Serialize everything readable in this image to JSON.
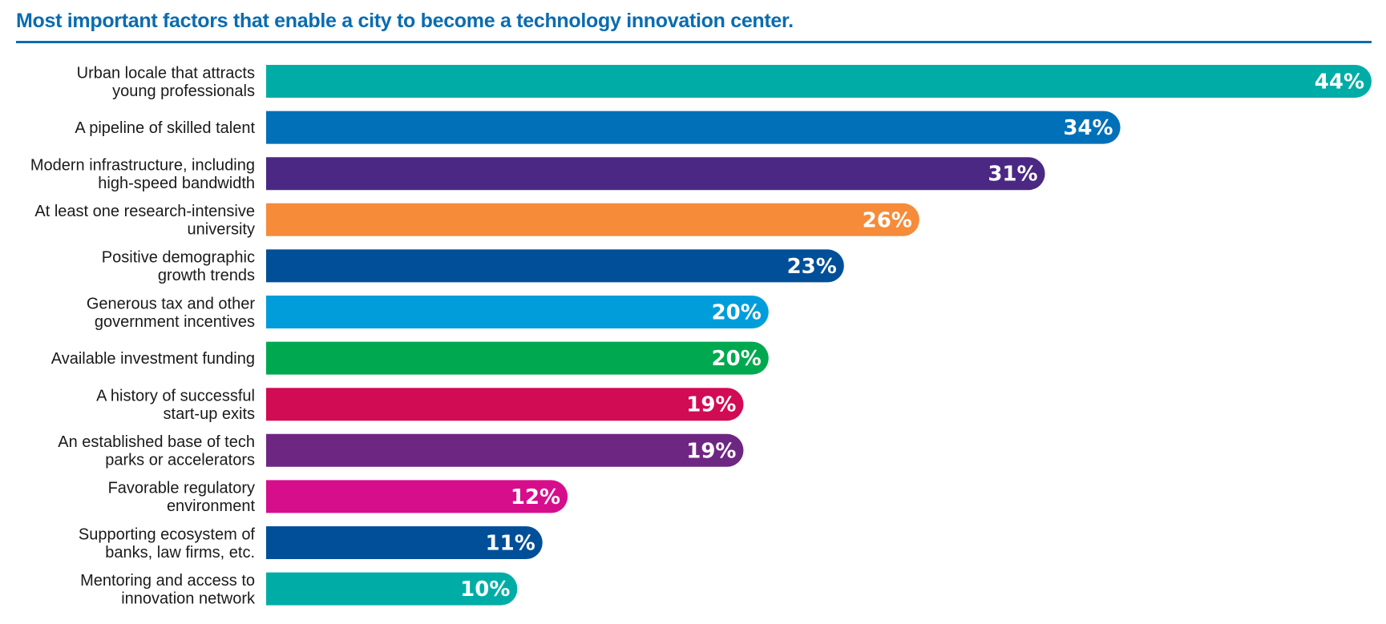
{
  "chart_data": {
    "type": "bar",
    "orientation": "horizontal",
    "title": "Most important factors that enable a city to become a technology innovation center.",
    "xlabel": "",
    "ylabel": "",
    "xlim": [
      0,
      44
    ],
    "grid": false,
    "legend": "none",
    "value_suffix": "%",
    "categories": [
      [
        "Urban locale that attracts",
        "young professionals"
      ],
      [
        "A pipeline of skilled talent"
      ],
      [
        "Modern infrastructure, including",
        "high-speed bandwidth"
      ],
      [
        "At least one research-intensive",
        "university"
      ],
      [
        "Positive demographic",
        "growth trends"
      ],
      [
        "Generous tax and other",
        "government incentives"
      ],
      [
        "Available investment funding"
      ],
      [
        "A history of successful",
        "start-up exits"
      ],
      [
        "An established base of tech",
        "parks or accelerators"
      ],
      [
        "Favorable regulatory",
        "environment"
      ],
      [
        "Supporting ecosystem of",
        "banks, law firms, etc."
      ],
      [
        "Mentoring and access to",
        "innovation network"
      ]
    ],
    "values": [
      44,
      34,
      31,
      26,
      23,
      20,
      20,
      19,
      19,
      12,
      11,
      10
    ],
    "value_labels": [
      "44%",
      "34%",
      "31%",
      "26%",
      "23%",
      "20%",
      "20%",
      "19%",
      "19%",
      "12%",
      "11%",
      "10%"
    ],
    "colors": [
      "#00ada6",
      "#0070b8",
      "#4b2883",
      "#f68b3a",
      "#004f98",
      "#009ddb",
      "#00a94f",
      "#d20b55",
      "#6e2683",
      "#d60e8c",
      "#004f98",
      "#00ada6"
    ]
  },
  "colors": {
    "title": "#0a6cb0"
  }
}
